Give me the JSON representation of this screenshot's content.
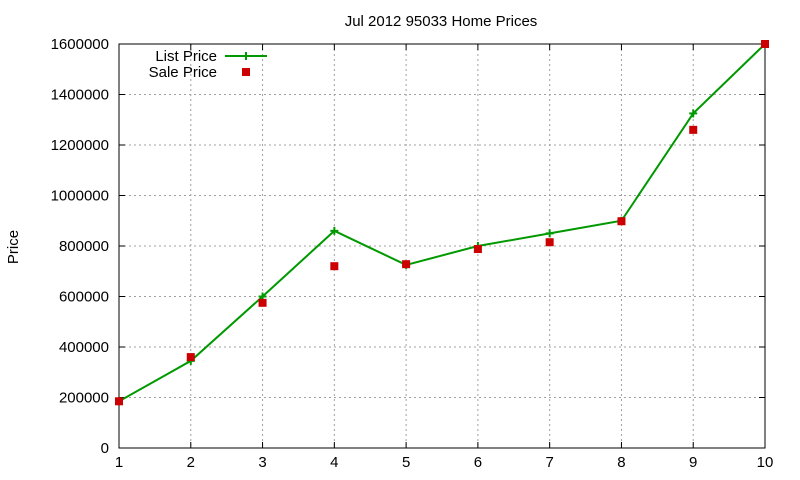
{
  "chart_data": {
    "type": "line",
    "title": "Jul 2012 95033 Home Prices",
    "xlabel": "",
    "ylabel": "Price",
    "x": [
      1,
      2,
      3,
      4,
      5,
      6,
      7,
      8,
      9,
      10
    ],
    "xlim": [
      1,
      10
    ],
    "ylim": [
      0,
      1600000
    ],
    "x_ticks": [
      1,
      2,
      3,
      4,
      5,
      6,
      7,
      8,
      9,
      10
    ],
    "y_ticks": [
      0,
      200000,
      400000,
      600000,
      800000,
      1000000,
      1200000,
      1400000,
      1600000
    ],
    "grid": true,
    "legend_position": "top-left",
    "series": [
      {
        "name": "List Price",
        "style": "line-with-plus-markers",
        "color": "#009900",
        "values": [
          185000,
          345000,
          600000,
          860000,
          725000,
          800000,
          850000,
          900000,
          1325000,
          1600000
        ]
      },
      {
        "name": "Sale Price",
        "style": "square-markers",
        "color": "#cc0000",
        "values": [
          185000,
          360000,
          575000,
          720000,
          728000,
          788000,
          815000,
          898000,
          1260000,
          1600000
        ]
      }
    ]
  }
}
